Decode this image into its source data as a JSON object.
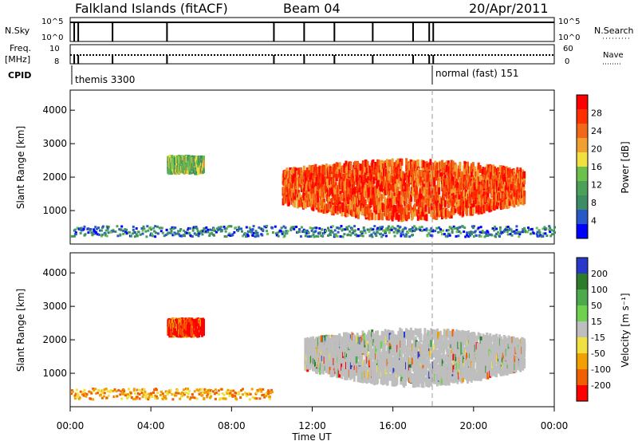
{
  "header": {
    "station": "Falkland Islands (fitACF)",
    "beam": "Beam 04",
    "date": "20/Apr/2011"
  },
  "top_panels": {
    "nsky_label": "N.Sky",
    "nsky_ticks": [
      "10^5",
      "10^0"
    ],
    "nsearch_label": "N.Search",
    "freq_label_line1": "Freq.",
    "freq_label_line2": "[MHz]",
    "freq_ticks": [
      "10",
      "8"
    ],
    "nave_label": "Nave",
    "nave_ticks": [
      "60",
      "0"
    ],
    "cpid_label": "CPID",
    "cpid_entries": [
      {
        "text": "themis 3300",
        "start_hour": 0
      },
      {
        "text": "normal (fast) 151",
        "start_hour": 18
      }
    ],
    "scan_gap_hours": [
      0.2,
      0.4,
      2.1,
      4.8,
      10.1,
      11.6,
      13.1,
      15.0,
      17.0,
      17.8,
      18.0
    ]
  },
  "colors": {
    "power_scale": [
      "#0000ff",
      "#2858c8",
      "#3c8c64",
      "#4ca05a",
      "#6cc04c",
      "#f0e040",
      "#f0a030",
      "#f06818",
      "#ff3000",
      "#ff0000"
    ],
    "velocity_scale": [
      "#2838c8",
      "#2c7c2c",
      "#4caa4c",
      "#70d050",
      "#bebebe",
      "#f0e040",
      "#f0a000",
      "#f06000",
      "#ff0000"
    ],
    "ground_scatter": "#bebebe"
  },
  "chart_data": [
    {
      "type": "heatmap",
      "panel": "power",
      "ylabel": "Slant Range [km]",
      "ylim": [
        0,
        4600
      ],
      "yticks": [
        1000,
        2000,
        3000,
        4000
      ],
      "xlim": [
        0,
        24
      ],
      "xtick_labels": [
        "00:00",
        "04:00",
        "08:00",
        "12:00",
        "16:00",
        "20:00",
        "00:00"
      ],
      "colorbar": {
        "label": "Power [dB]",
        "range": [
          0,
          32
        ],
        "ticks": [
          "4",
          "8",
          "12",
          "16",
          "20",
          "24",
          "28"
        ]
      },
      "features": [
        {
          "name": "main echo band",
          "hours": [
            10.5,
            22.5
          ],
          "range_km": [
            800,
            2500
          ],
          "power_db": 24
        },
        {
          "name": "dawn patch",
          "hours": [
            4.8,
            6.6
          ],
          "range_km": [
            2200,
            2600
          ],
          "power_db": 12
        },
        {
          "name": "near-range scatter",
          "hours": [
            0,
            24
          ],
          "range_km": [
            180,
            500
          ],
          "power_db": 6
        }
      ]
    },
    {
      "type": "heatmap",
      "panel": "velocity",
      "ylabel": "Slant Range [km]",
      "ylim": [
        0,
        4600
      ],
      "yticks": [
        1000,
        2000,
        3000,
        4000
      ],
      "xlim": [
        0,
        24
      ],
      "xlabel": "Time UT",
      "xtick_labels": [
        "00:00",
        "04:00",
        "08:00",
        "12:00",
        "16:00",
        "20:00",
        "00:00"
      ],
      "colorbar": {
        "label": "Velocity [m s⁻¹]",
        "range": [
          -250,
          250
        ],
        "ticks": [
          "200",
          "100",
          "50",
          "15",
          "-15",
          "-50",
          "-100",
          "-200"
        ]
      },
      "features": [
        {
          "name": "ground scatter band",
          "hours": [
            11.6,
            22.5
          ],
          "range_km": [
            700,
            2300
          ],
          "velocity": 0
        },
        {
          "name": "dawn patch",
          "hours": [
            4.8,
            6.6
          ],
          "range_km": [
            2200,
            2600
          ],
          "velocity": -200
        },
        {
          "name": "near-range scatter",
          "hours": [
            0,
            10
          ],
          "range_km": [
            180,
            500
          ],
          "velocity": -50
        }
      ]
    }
  ]
}
